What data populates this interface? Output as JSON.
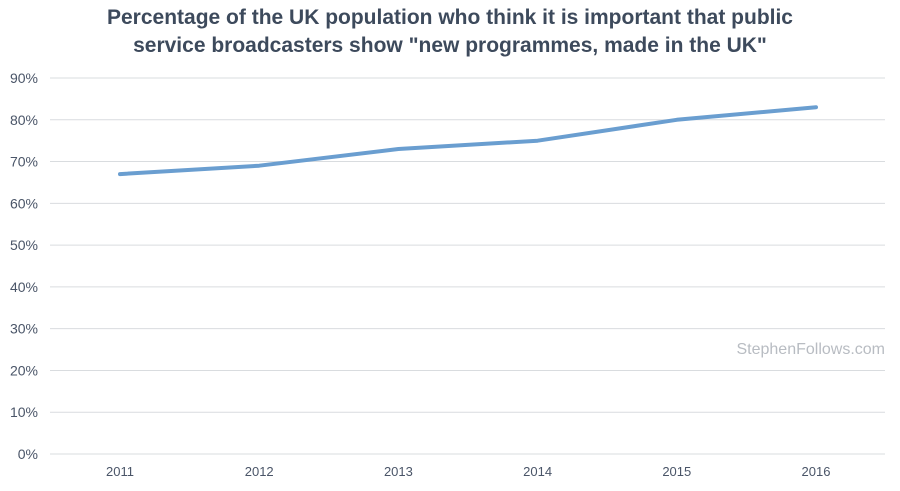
{
  "chart_data": {
    "type": "line",
    "title_lines": [
      "Percentage of the UK population who think it is important that public",
      "service broadcasters show \"new programmes, made in the UK\""
    ],
    "xlabel": "",
    "ylabel": "",
    "x": [
      "2011",
      "2012",
      "2013",
      "2014",
      "2015",
      "2016"
    ],
    "series": [
      {
        "values": [
          67,
          69,
          73,
          75,
          80,
          83
        ],
        "color": "#6a9ed0"
      }
    ],
    "ylim": [
      0,
      90
    ],
    "yticks": [
      0,
      10,
      20,
      30,
      40,
      50,
      60,
      70,
      80,
      90
    ],
    "ytick_suffix": "%",
    "grid": true,
    "grid_color": "#d9dcdf",
    "title_color": "#3d4a5c",
    "watermark": "StephenFollows.com"
  }
}
